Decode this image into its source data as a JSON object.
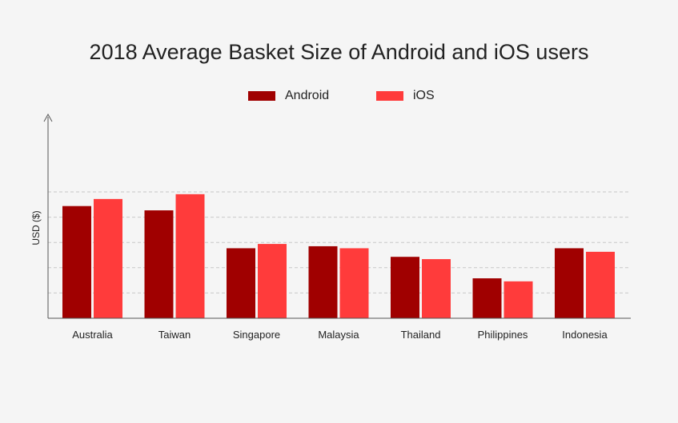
{
  "chart_data": {
    "type": "bar",
    "title": "2018 Average Basket Size of Android and iOS users",
    "xlabel": "",
    "ylabel": "USD ($)",
    "ylim": [
      0,
      8
    ],
    "grid": true,
    "legend_position": "top-center",
    "categories": [
      "Australia",
      "Taiwan",
      "Singapore",
      "Malaysia",
      "Thailand",
      "Philippines",
      "Indonesia"
    ],
    "series": [
      {
        "name": "Android",
        "color": "#a00000",
        "values": [
          4.44,
          4.27,
          2.77,
          2.85,
          2.43,
          1.58,
          2.77
        ]
      },
      {
        "name": "iOS",
        "color": "#ff3b3b",
        "values": [
          4.72,
          4.91,
          2.94,
          2.77,
          2.34,
          1.46,
          2.63
        ]
      }
    ]
  }
}
